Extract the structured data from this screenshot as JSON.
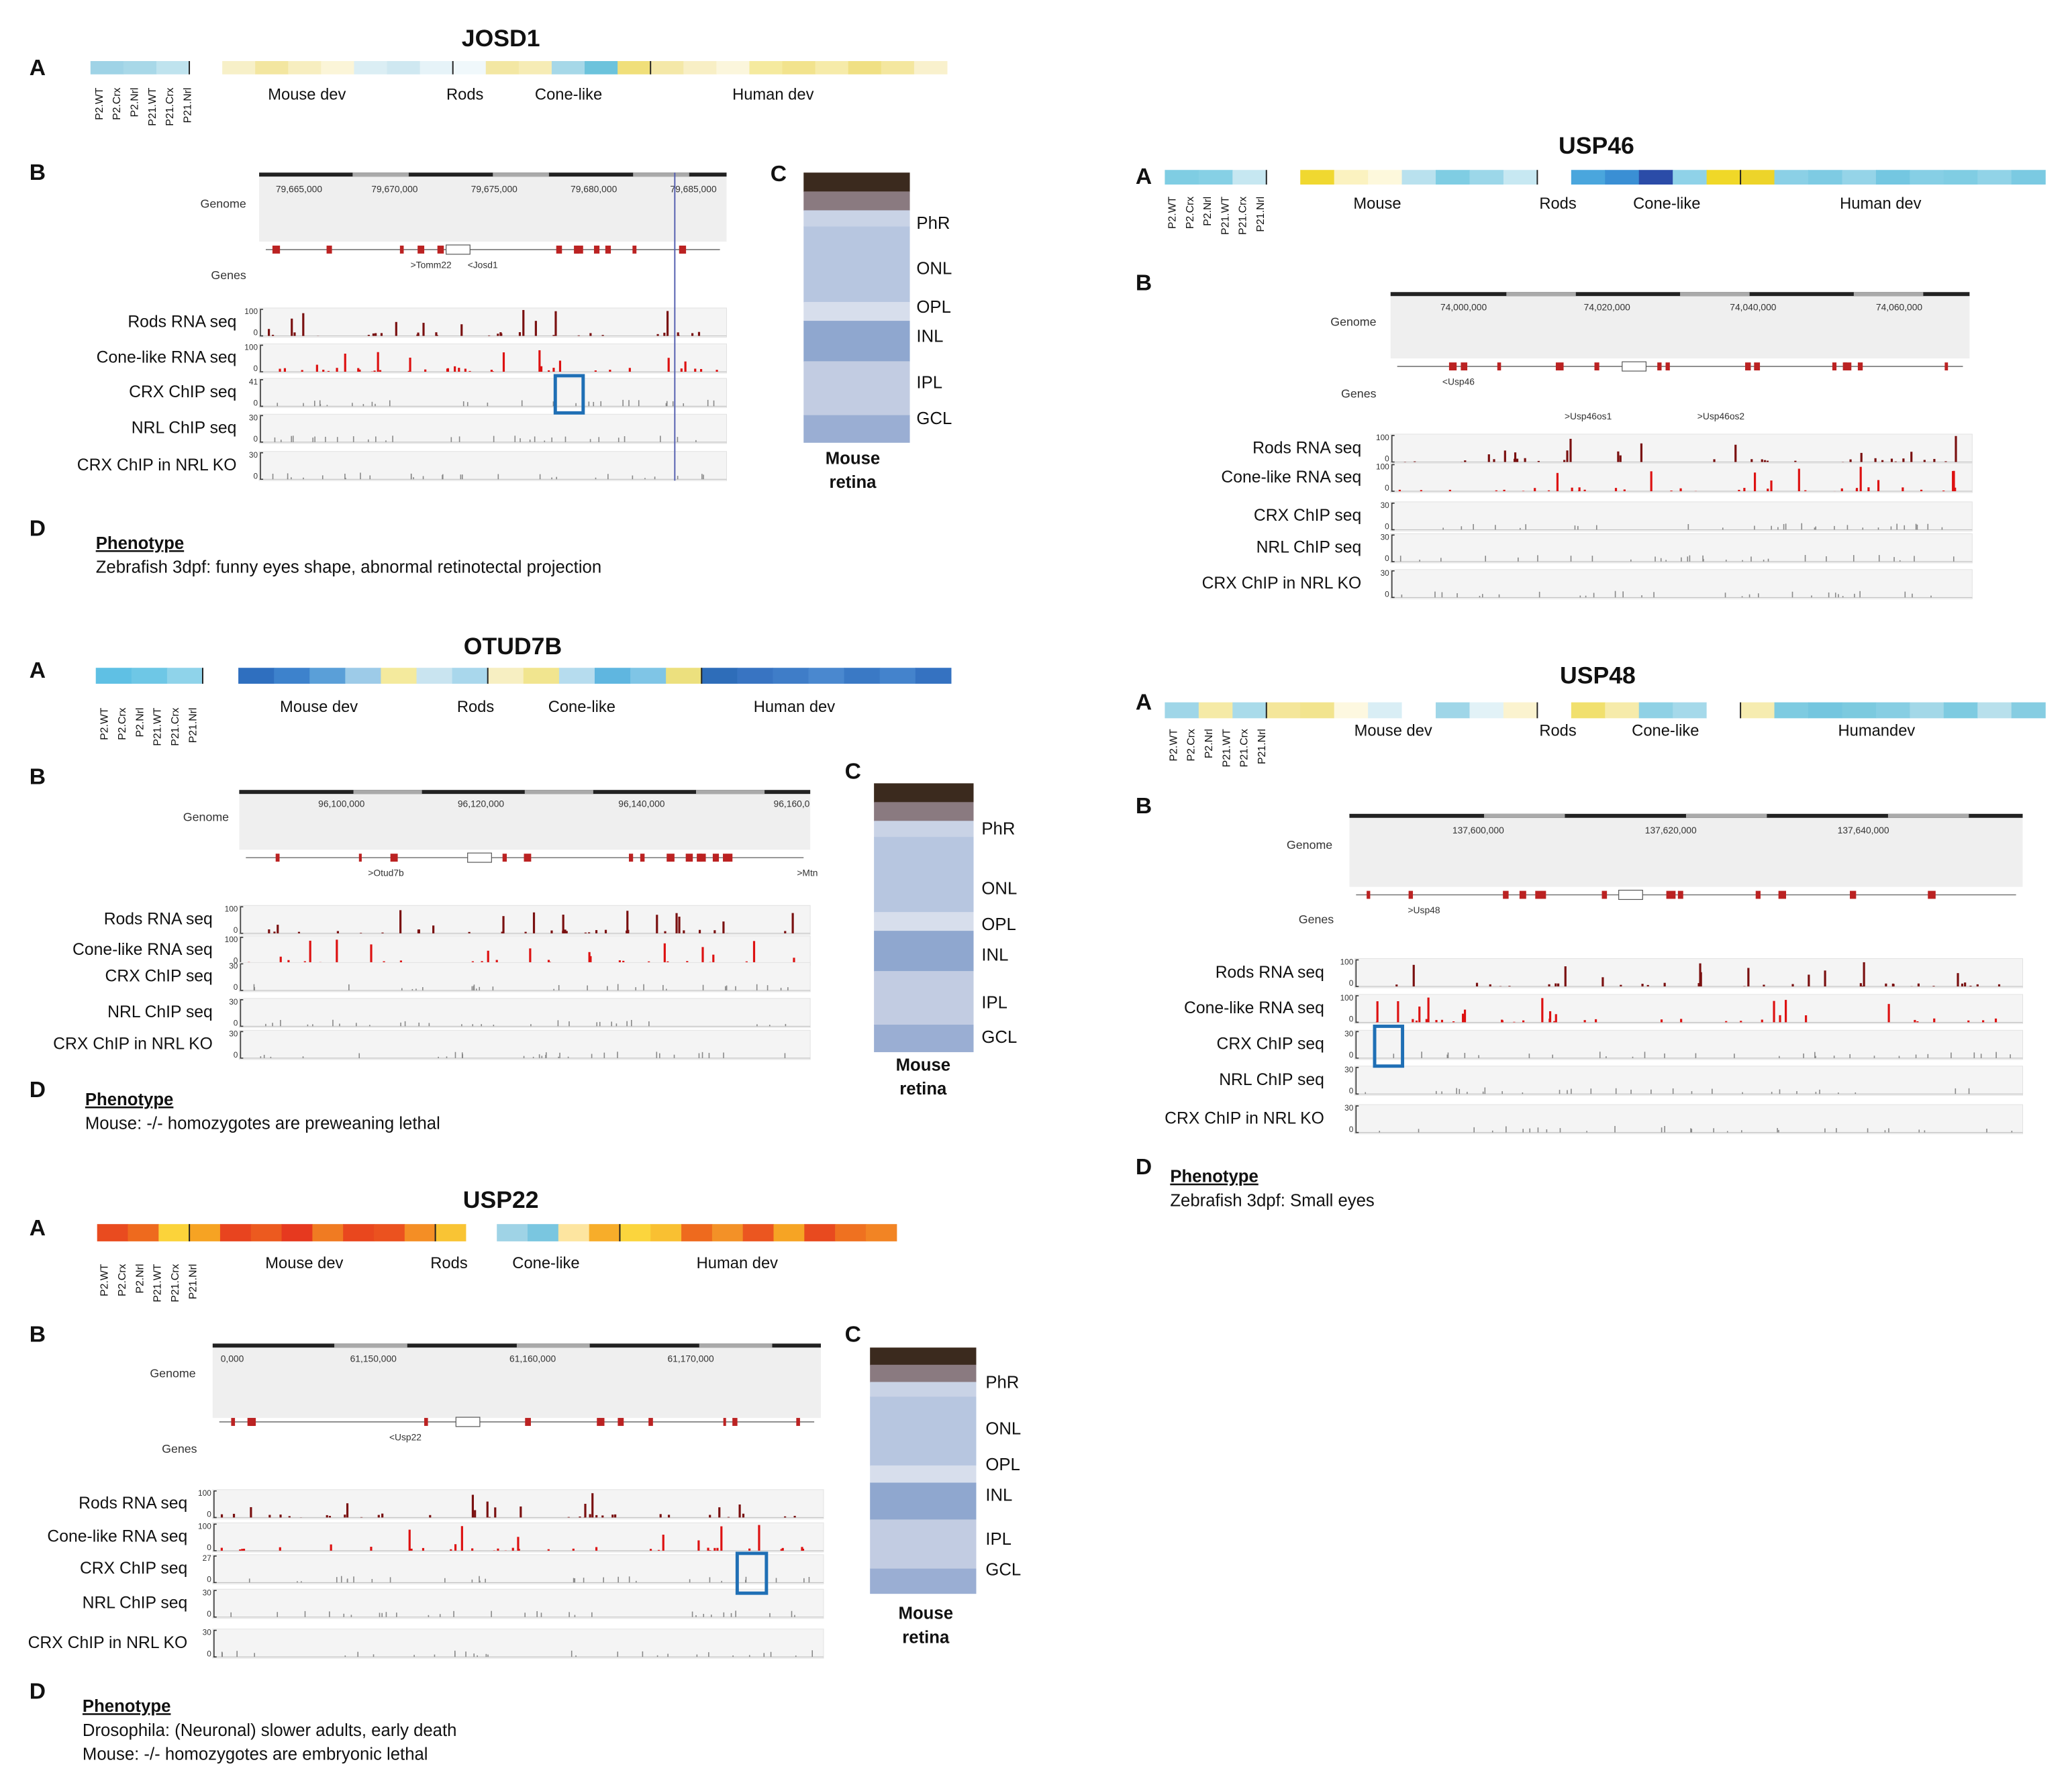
{
  "panels": [
    {
      "title": "JOSD1",
      "letters": {
        "a": "A",
        "b": "B",
        "c": "C",
        "d": "D"
      },
      "samples": [
        "P2.WT",
        "P2.Crx",
        "P2.Nrl",
        "P21.WT",
        "P21.Crx",
        "P21.Nrl"
      ],
      "groups": [
        "Mouse dev",
        "Rods",
        "Cone-like",
        "Human dev"
      ],
      "heatmap_colors": [
        "#9fd3e6",
        "#a8d8e8",
        "#bfe3ee",
        "#ffffff",
        "#f7f0c8",
        "#f3e6a0",
        "#f7eec0",
        "#fbf5d8",
        "#dbeef4",
        "#cfe8f1",
        "#e6f3f8",
        "#f0f8fb",
        "#f3e7a3",
        "#f6ecb5",
        "#a6d8e8",
        "#6cc3dc",
        "#f0df7a",
        "#f4e8a8",
        "#f8efc5",
        "#fbf6dc",
        "#f5ea9f",
        "#f2e38d",
        "#f6eba9",
        "#f0e084",
        "#f4e79f",
        "#f9f1cd"
      ],
      "genome": {
        "label": "Genome",
        "ticks": [
          "79,665,000",
          "79,670,000",
          "79,675,000",
          "79,680,000",
          "79,685,000"
        ]
      },
      "genes": {
        "label": "Genes",
        "names": [
          ">Tomm22",
          "<Josd1"
        ]
      },
      "tracks": [
        {
          "name": "Rods RNA seq",
          "max": 100,
          "min": 0
        },
        {
          "name": "Cone-like RNA seq",
          "max": 100,
          "min": 0
        },
        {
          "name": "CRX ChIP seq",
          "max": 41,
          "min": 0
        },
        {
          "name": "NRL ChIP seq",
          "max": 30,
          "min": 0
        },
        {
          "name": "CRX ChIP in NRL KO",
          "max": 30,
          "min": 0
        }
      ],
      "retina": {
        "layers": [
          "PhR",
          "ONL",
          "OPL",
          "INL",
          "IPL",
          "GCL"
        ],
        "caption": [
          "Mouse",
          "retina"
        ]
      },
      "phenotype": {
        "heading": "Phenotype",
        "lines": [
          "Zebrafish 3dpf: funny eyes shape, abnormal retinotectal projection"
        ]
      }
    },
    {
      "title": "OTUD7B",
      "letters": {
        "a": "A",
        "b": "B",
        "c": "C",
        "d": "D"
      },
      "samples": [
        "P2.WT",
        "P2.Crx",
        "P2.Nrl",
        "P21.WT",
        "P21.Crx",
        "P21.Nrl"
      ],
      "groups": [
        "Mouse dev",
        "Rods",
        "Cone-like",
        "Human dev"
      ],
      "heatmap_colors": [
        "#5fc0e4",
        "#6ec7e6",
        "#8fd3ea",
        "#ffffff",
        "#2f6fbf",
        "#3d82cc",
        "#5a9fd8",
        "#9dcbe8",
        "#f4ea9d",
        "#c9e4f0",
        "#a9d7ec",
        "#f7efc2",
        "#f1e58f",
        "#b6dcee",
        "#5fb6e0",
        "#7fc5e6",
        "#ece07e",
        "#2e6db9",
        "#3874c2",
        "#3f7dc8",
        "#4a88cf",
        "#3a79c5",
        "#4483cc",
        "#3572c1"
      ],
      "genome": {
        "label": "Genome",
        "ticks": [
          "96,100,000",
          "96,120,000",
          "96,140,000",
          "96,160,0"
        ]
      },
      "genes": {
        "names": [
          ">Otud7b",
          ">Mtn"
        ]
      },
      "tracks": [
        {
          "name": "Rods RNA seq",
          "max": 100,
          "min": 0
        },
        {
          "name": "Cone-like RNA seq",
          "max": 100,
          "min": 0
        },
        {
          "name": "CRX ChIP seq",
          "max": 30,
          "min": 0
        },
        {
          "name": "NRL ChIP seq",
          "max": 30,
          "min": 0
        },
        {
          "name": "CRX ChIP in NRL KO",
          "max": 30,
          "min": 0
        }
      ],
      "retina": {
        "layers": [
          "PhR",
          "ONL",
          "OPL",
          "INL",
          "IPL",
          "GCL"
        ],
        "caption": [
          "Mouse",
          "retina"
        ]
      },
      "phenotype": {
        "heading": "Phenotype",
        "lines": [
          "Mouse: -/- homozygotes are preweaning lethal"
        ]
      }
    },
    {
      "title": "USP22",
      "letters": {
        "a": "A",
        "b": "B",
        "c": "C",
        "d": "D"
      },
      "samples": [
        "P2.WT",
        "P2.Crx",
        "P2.Nrl",
        "P21.WT",
        "P21.Crx",
        "P21.Nrl"
      ],
      "groups": [
        "Mouse  dev",
        "Rods",
        "Cone-like",
        "Human dev"
      ],
      "heatmap_colors": [
        "#e94b1f",
        "#ee6a1e",
        "#fbd33a",
        "#f6a323",
        "#e8441f",
        "#ec5a1f",
        "#e6391f",
        "#f07b22",
        "#e9471e",
        "#eb521f",
        "#f48e25",
        "#f9c434",
        "#ffffff",
        "#9fd3e6",
        "#7ac6e0",
        "#fde5a0",
        "#f7ad2a",
        "#fbd53d",
        "#f9c032",
        "#ee6a1e",
        "#f39127",
        "#eb5620",
        "#f6a424",
        "#e84a1f",
        "#ef7120",
        "#f28424"
      ],
      "genome": {
        "label": "Genome",
        "ticks": [
          "0,000",
          "61,150,000",
          "61,160,000",
          "61,170,000"
        ]
      },
      "genes": {
        "label": "Genes",
        "names": [
          "<Usp22"
        ]
      },
      "tracks": [
        {
          "name": "Rods RNA seq",
          "max": 100,
          "min": 0
        },
        {
          "name": "Cone-like RNA seq",
          "max": 100,
          "min": 0
        },
        {
          "name": "CRX ChIP seq",
          "max": 27,
          "min": 0
        },
        {
          "name": "NRL ChIP seq",
          "max": 30,
          "min": 0
        },
        {
          "name": "CRX ChIP in NRL KO",
          "max": 30,
          "min": 0
        }
      ],
      "retina": {
        "layers": [
          "PhR",
          "ONL",
          "OPL",
          "INL",
          "IPL",
          "GCL"
        ],
        "caption": [
          "Mouse",
          "retina"
        ]
      },
      "phenotype": {
        "heading": "Phenotype",
        "lines": [
          "Drosophila: (Neuronal) slower adults, early death",
          "Mouse: -/- homozygotes are embryonic lethal"
        ]
      }
    },
    {
      "title": "USP46",
      "letters": {
        "a": "A",
        "b": "B"
      },
      "samples": [
        "P2.WT",
        "P2.Crx",
        "P2.Nrl",
        "P21.WT",
        "P21.Crx",
        "P21.Nrl"
      ],
      "groups": [
        "Mouse",
        "Rods",
        "Cone-like",
        "Human dev"
      ],
      "heatmap_colors": [
        "#7fcde3",
        "#86d0e5",
        "#c6e7f1",
        "#ffffff",
        "#f0d830",
        "#fbf2c0",
        "#fdf8dc",
        "#b9e1ee",
        "#7fcde3",
        "#9cd7e9",
        "#c7e8f2",
        "#ffffff",
        "#4aa6dd",
        "#3a8fd4",
        "#2b4ca8",
        "#8fd2e8",
        "#f0d828",
        "#edd42a",
        "#8bd0e6",
        "#7ecbe3",
        "#95d4e8",
        "#74c7e1",
        "#86cfe5",
        "#80cde3",
        "#91d3e7",
        "#7bcae2"
      ],
      "genome": {
        "label": "Genome",
        "ticks": [
          "74,000,000",
          "74,020,000",
          "74,040,000",
          "74,060,000"
        ]
      },
      "genes": {
        "label": "Genes",
        "names": [
          "<Usp46",
          ">Usp46os1",
          ">Usp46os2"
        ]
      },
      "tracks": [
        {
          "name": "Rods RNA seq",
          "max": 100,
          "min": 0
        },
        {
          "name": "Cone-like RNA seq",
          "max": 100,
          "min": 0
        },
        {
          "name": "CRX ChIP seq",
          "max": 30,
          "min": 0
        },
        {
          "name": "NRL ChIP seq",
          "max": 30,
          "min": 0
        },
        {
          "name": "CRX ChIP in NRL KO",
          "max": 30,
          "min": 0
        }
      ]
    },
    {
      "title": "USP48",
      "letters": {
        "a": "A",
        "b": "B",
        "d": "D"
      },
      "samples": [
        "P2.WT",
        "P2.Crx",
        "P2.Nrl",
        "P21.WT",
        "P21.Crx",
        "P21.Nrl"
      ],
      "groups": [
        "Mouse dev",
        "Rods",
        "Cone-like",
        "Humandev"
      ],
      "heatmap_colors": [
        "#9fd6e8",
        "#f5eaa6",
        "#a9dbea",
        "#f4e69a",
        "#f2e48e",
        "#fdf8e0",
        "#d9eef5",
        "#ffffff",
        "#9fd6e8",
        "#e2f2f7",
        "#fbf3cf",
        "#ffffff",
        "#f1e06e",
        "#f6ebaa",
        "#8fd1e5",
        "#a5d9ea",
        "#ffffff",
        "#f6ecb0",
        "#7ecbe1",
        "#74c6df",
        "#7ccadf",
        "#87cee3",
        "#a3d8e8",
        "#7ecbe1",
        "#b8e0ec",
        "#86cde2"
      ],
      "genome": {
        "label": "Genome",
        "ticks": [
          "137,600,000",
          "137,620,000",
          "137,640,000"
        ]
      },
      "genes": {
        "label": "Genes",
        "names": [
          ">Usp48"
        ]
      },
      "tracks": [
        {
          "name": "Rods RNA seq",
          "max": 100,
          "min": 0
        },
        {
          "name": "Cone-like RNA seq",
          "max": 100,
          "min": 0
        },
        {
          "name": "CRX ChIP seq",
          "max": 30,
          "min": 0
        },
        {
          "name": "NRL ChIP seq",
          "max": 30,
          "min": 0
        },
        {
          "name": "CRX ChIP in NRL KO",
          "max": 30,
          "min": 0
        }
      ],
      "phenotype": {
        "heading": "Phenotype",
        "lines": [
          "Zebrafish 3dpf: Small eyes"
        ]
      }
    }
  ]
}
